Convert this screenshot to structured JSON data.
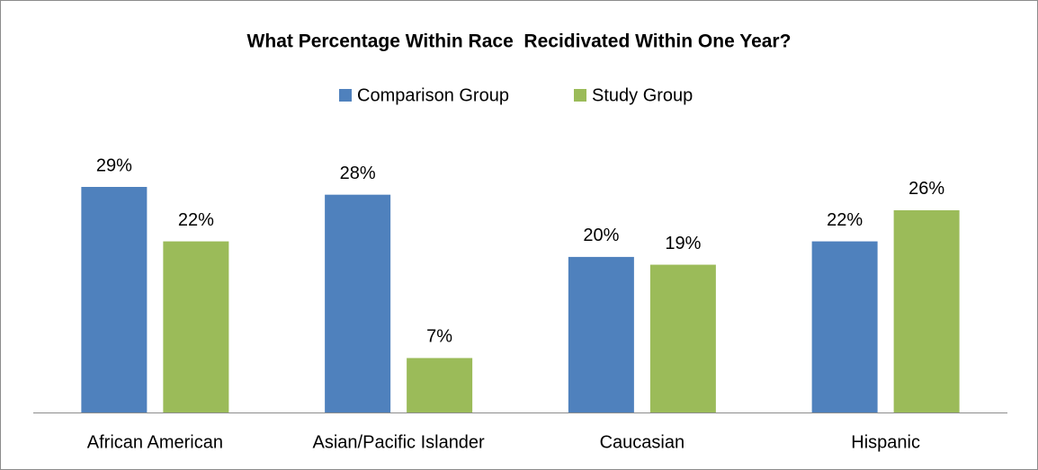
{
  "chart_data": {
    "type": "bar",
    "title": "What Percentage Within Race  Recidivated Within One Year?",
    "categories": [
      "African American",
      "Asian/Pacific Islander",
      "Caucasian",
      "Hispanic"
    ],
    "series": [
      {
        "name": "Comparison Group",
        "color": "#4f81bd",
        "values": [
          29,
          28,
          20,
          22
        ],
        "value_labels": [
          "29%",
          "28%",
          "20%",
          "22%"
        ]
      },
      {
        "name": "Study Group",
        "color": "#9bbb59",
        "values": [
          22,
          7,
          19,
          26
        ],
        "value_labels": [
          "22%",
          "7%",
          "19%",
          "26%"
        ]
      }
    ],
    "legend": "top"
  }
}
